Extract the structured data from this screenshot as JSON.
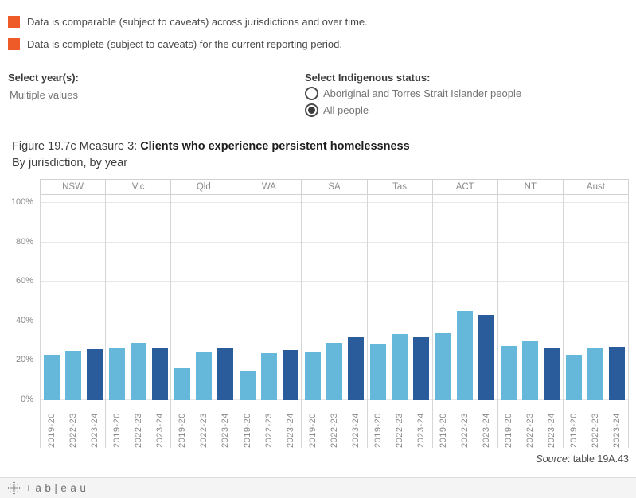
{
  "colors": {
    "legend_swatch": "#ee5b29",
    "bar_light": "#66b8db",
    "bar_dark": "#2a5c9c",
    "gridline": "#e8e8e8",
    "axis_text": "#8a8a8a"
  },
  "legend": {
    "items": [
      {
        "label": "Data is comparable (subject to caveats) across jurisdictions and over time."
      },
      {
        "label": "Data is complete (subject to caveats) for the current reporting period."
      }
    ]
  },
  "filters": {
    "year": {
      "label": "Select year(s):",
      "value": "Multiple values"
    },
    "indigenous_status": {
      "label": "Select Indigenous status:",
      "options": [
        {
          "label": "Aboriginal and Torres Strait Islander people",
          "selected": false
        },
        {
          "label": "All people",
          "selected": true
        }
      ]
    }
  },
  "figure": {
    "title_prefix": "Figure 19.7c Measure 3: ",
    "title_bold": "Clients who experience persistent homelessness",
    "subtitle": "By jurisdiction, by year"
  },
  "chart_data": {
    "type": "bar",
    "title": "Clients who experience persistent homelessness, by jurisdiction, by year",
    "categories": [
      "NSW",
      "Vic",
      "Qld",
      "WA",
      "SA",
      "Tas",
      "ACT",
      "NT",
      "Aust"
    ],
    "series": [
      {
        "name": "2019-20",
        "color": "#66b8db",
        "values": [
          23.0,
          26.2,
          16.7,
          15.1,
          24.6,
          28.3,
          34.4,
          27.5,
          23.0
        ]
      },
      {
        "name": "2022-23",
        "color": "#66b8db",
        "values": [
          24.9,
          29.0,
          24.4,
          23.9,
          28.9,
          33.4,
          45.2,
          30.0,
          26.8
        ]
      },
      {
        "name": "2023-24",
        "color": "#2a5c9c",
        "values": [
          25.8,
          26.6,
          26.3,
          25.6,
          31.9,
          32.4,
          43.0,
          26.3,
          27.0
        ]
      }
    ],
    "ylabel": "",
    "xlabel": "",
    "y_ticks": [
      "0%",
      "20%",
      "40%",
      "60%",
      "80%",
      "100%"
    ],
    "ylim": [
      0,
      100
    ],
    "grid": true,
    "legend_position": "none"
  },
  "source": {
    "italic_word": "Source",
    "rest": ": table 19A.43"
  },
  "footer": {
    "wordmark": "+ab|eau"
  }
}
